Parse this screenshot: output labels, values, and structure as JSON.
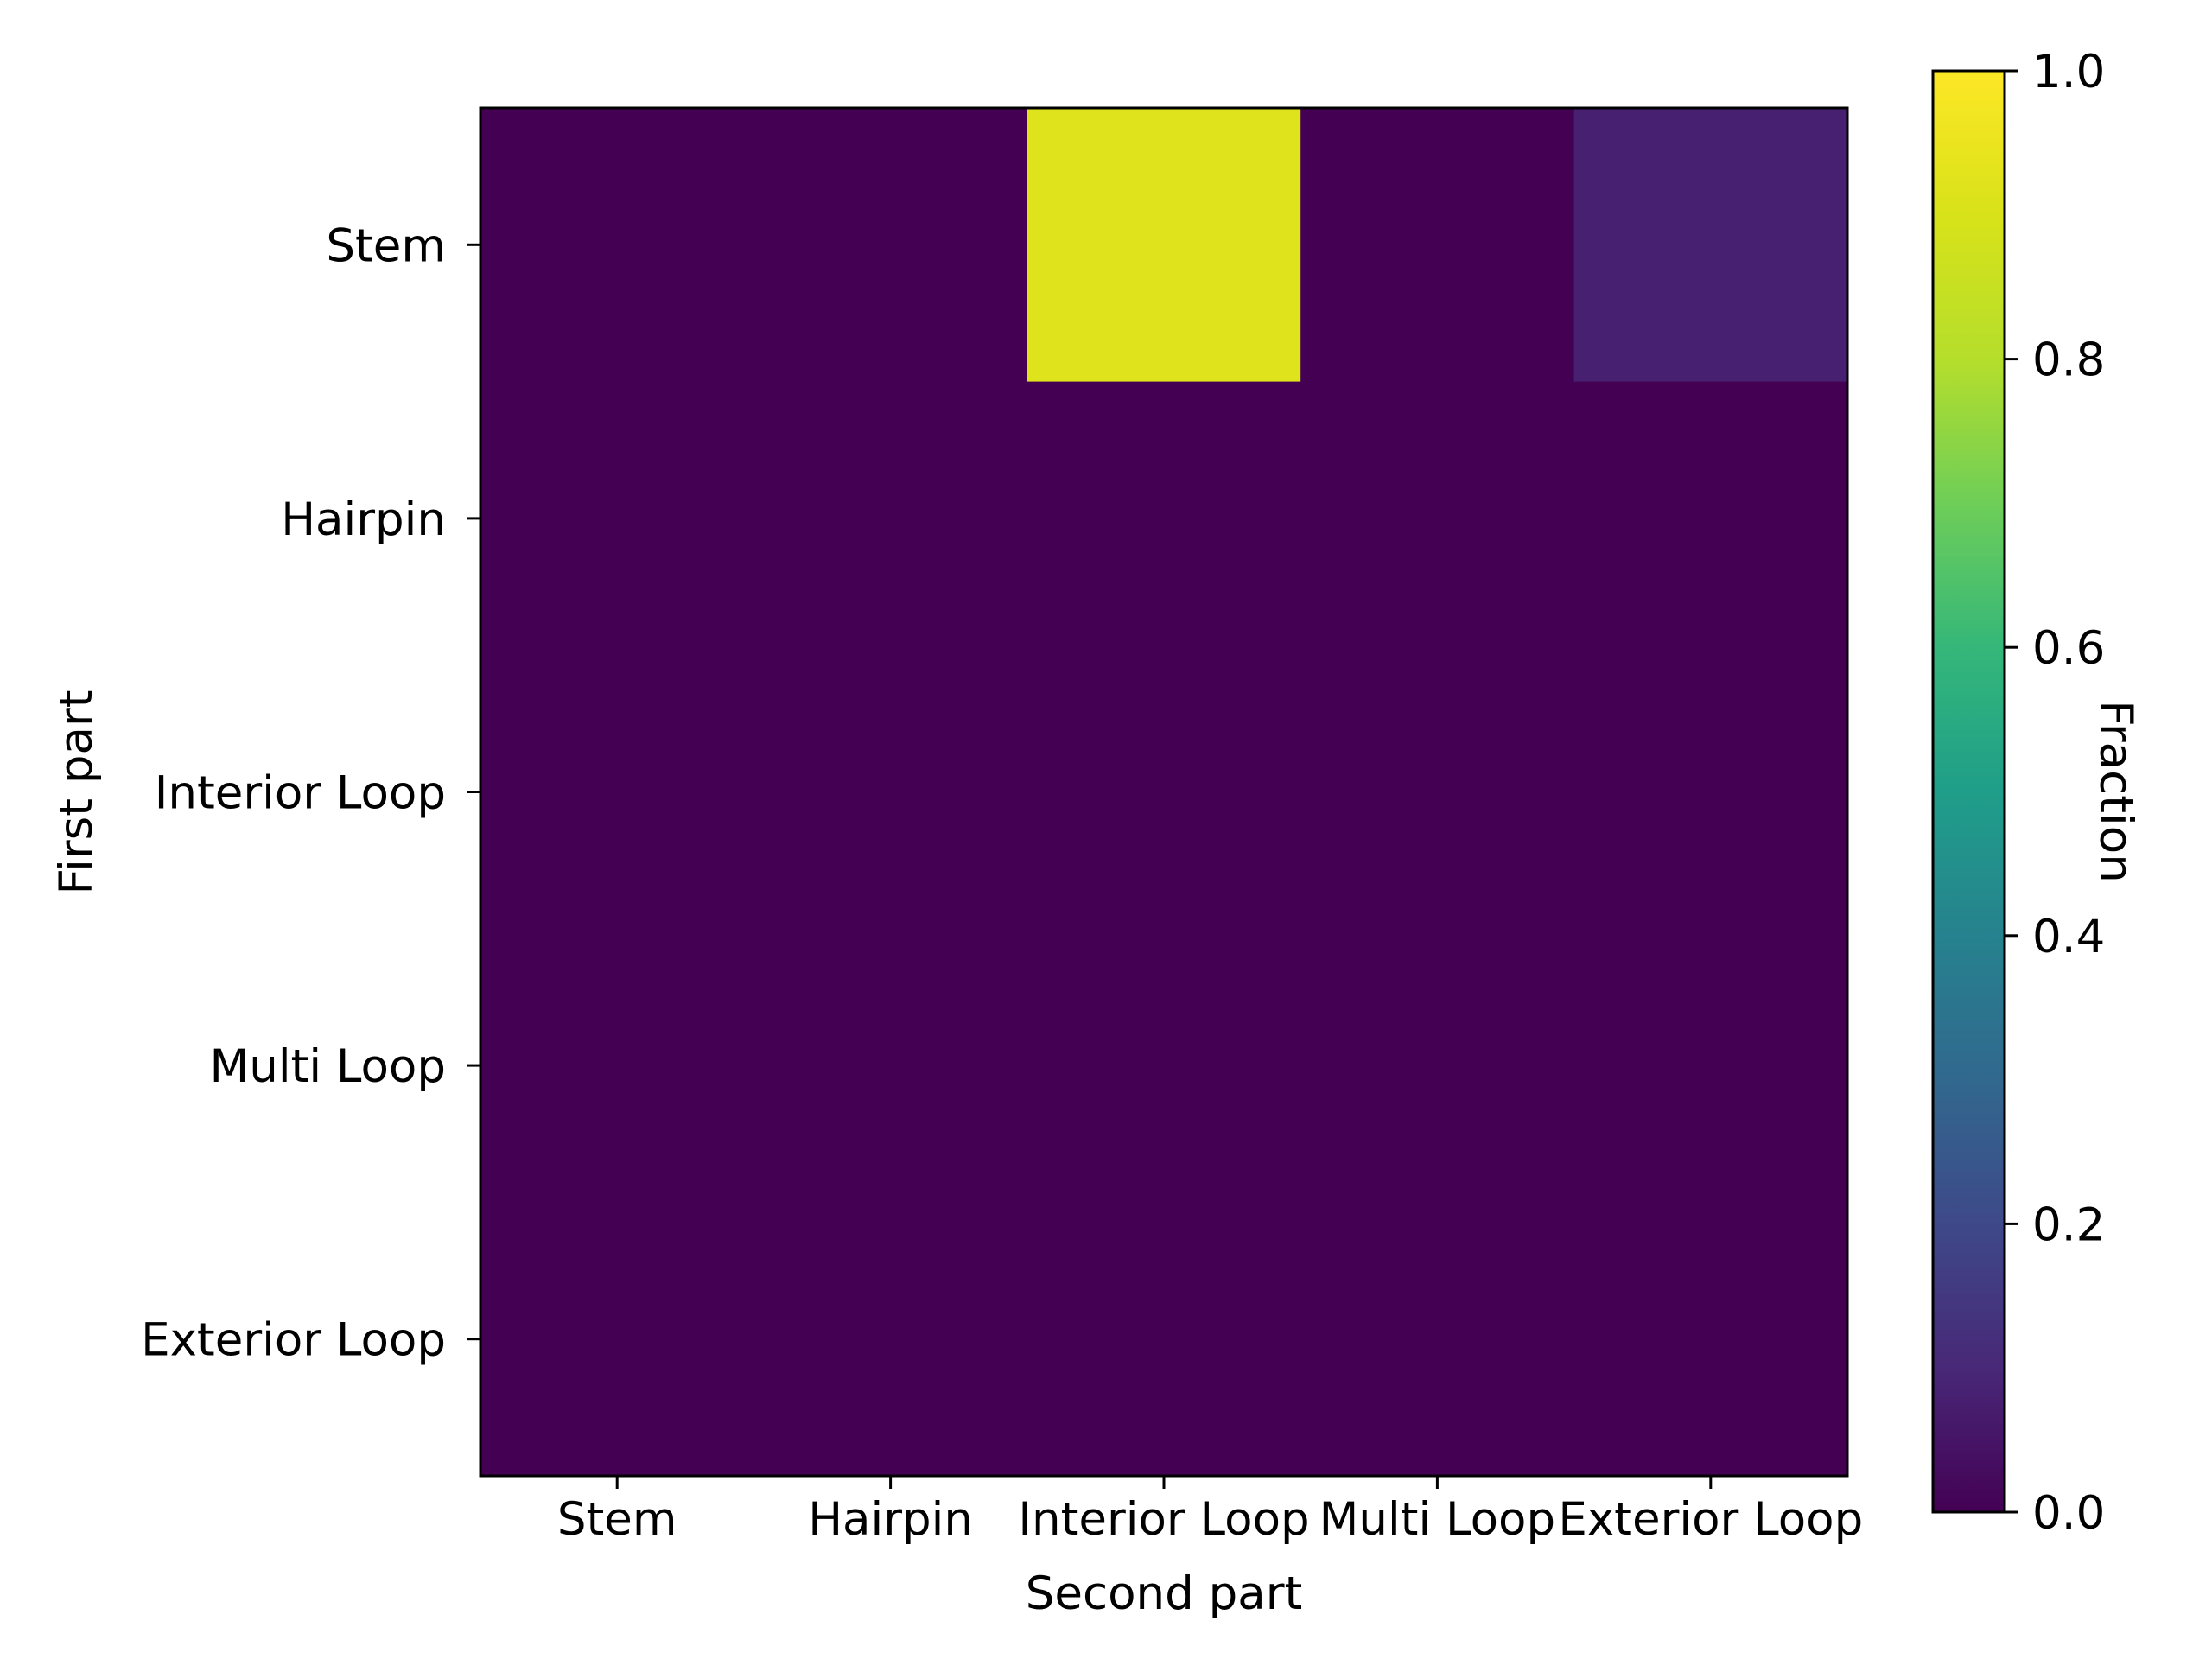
{
  "chart_data": {
    "type": "heatmap",
    "title": "",
    "xlabel": "Second part",
    "ylabel": "First part",
    "x_categories": [
      "Stem",
      "Hairpin",
      "Interior Loop",
      "Multi Loop",
      "Exterior Loop"
    ],
    "y_categories": [
      "Stem",
      "Hairpin",
      "Interior Loop",
      "Multi Loop",
      "Exterior Loop"
    ],
    "values": [
      [
        0.0,
        0.0,
        0.92,
        0.0,
        0.08
      ],
      [
        0.0,
        0.0,
        0.0,
        0.0,
        0.0
      ],
      [
        0.0,
        0.0,
        0.0,
        0.0,
        0.0
      ],
      [
        0.0,
        0.0,
        0.0,
        0.0,
        0.0
      ],
      [
        0.0,
        0.0,
        0.0,
        0.0,
        0.0
      ]
    ],
    "colormap": "viridis",
    "colorbar": {
      "label": "Fraction",
      "range": [
        0.0,
        1.0
      ],
      "ticks": [
        "0.0",
        "0.2",
        "0.4",
        "0.6",
        "0.8",
        "1.0"
      ]
    },
    "grid": false
  }
}
